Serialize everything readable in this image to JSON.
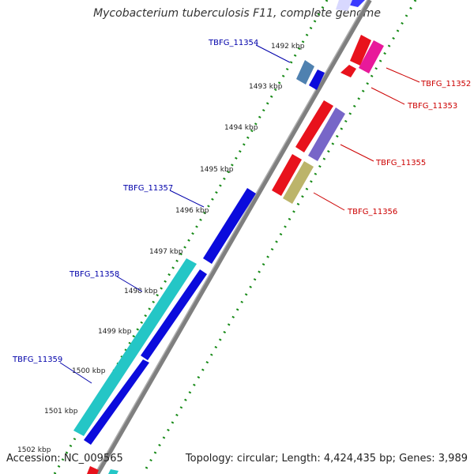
{
  "title": "Mycobacterium tuberculosis F11, complete genome",
  "footer": {
    "accession": "Accession: NC_009565",
    "topology": "Topology: circular; Length: 4,424,435 bp; Genes: 3,989"
  },
  "scale_labels": [
    "1492 kbp",
    "1493 kbp",
    "1494 kbp",
    "1495 kbp",
    "1496 kbp",
    "1497 kbp",
    "1498 kbp",
    "1499 kbp",
    "1500 kbp",
    "1501 kbp",
    "1502 kbp"
  ],
  "genes": [
    {
      "label": "TBFG_11352",
      "strand": "reverse",
      "color": "#e8121c"
    },
    {
      "label": "TBFG_11353",
      "strand": "reverse",
      "color": "#e8121c"
    },
    {
      "label": "TBFG_11354",
      "strand": "forward",
      "color": "#4f81b0"
    },
    {
      "label": "TBFG_11355",
      "strand": "reverse",
      "color": "#7766c8"
    },
    {
      "label": "TBFG_11356",
      "strand": "reverse",
      "color": "#bcb46a"
    },
    {
      "label": "TBFG_11357",
      "strand": "forward",
      "color": "#0b0bdc"
    },
    {
      "label": "TBFG_11358",
      "strand": "forward",
      "color": "#24c6c6"
    },
    {
      "label": "TBFG_11359",
      "strand": "forward",
      "color": "#0b0bdc"
    }
  ],
  "colors": {
    "forward_label": "#0000aa",
    "reverse_label": "#cc0000",
    "cds_forward": "#0b0bdc",
    "cds_reverse": "#e8121c",
    "cds_pink": "#e8199a",
    "dotted_track": "#178a17",
    "backbone": "#7f7f7f"
  }
}
